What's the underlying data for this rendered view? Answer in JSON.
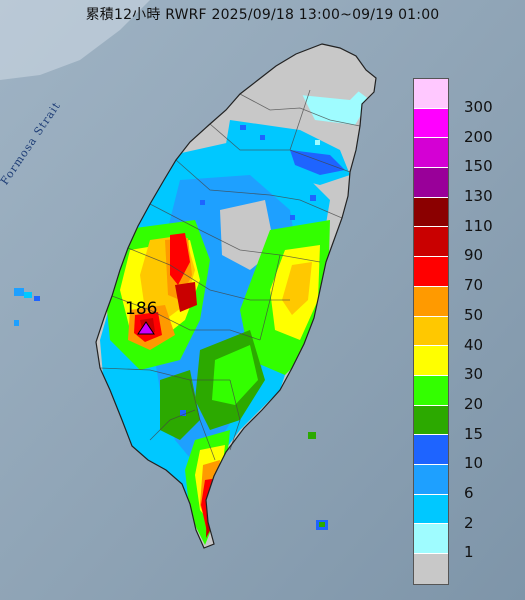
{
  "title": "累積12小時 RWRF 2025/09/18 13:00~09/19 01:00",
  "strait_label": "Formosa Strait",
  "max_station_value": "186",
  "legend": {
    "labels": [
      "300",
      "200",
      "150",
      "130",
      "110",
      "90",
      "70",
      "50",
      "40",
      "30",
      "20",
      "15",
      "10",
      "6",
      "2",
      "1"
    ],
    "colors": [
      "#ffc8ff",
      "#ff00ff",
      "#d400d4",
      "#990099",
      "#8b0000",
      "#c90000",
      "#ff0000",
      "#ff9a00",
      "#ffc800",
      "#ffff00",
      "#33ff00",
      "#2ca900",
      "#1e64ff",
      "#1ea0ff",
      "#00c8ff",
      "#9ffcff",
      "#c8c8c8"
    ]
  },
  "colors": {
    "sea": "#8ea3b5",
    "land_no_rain": "#c8c8c8"
  }
}
